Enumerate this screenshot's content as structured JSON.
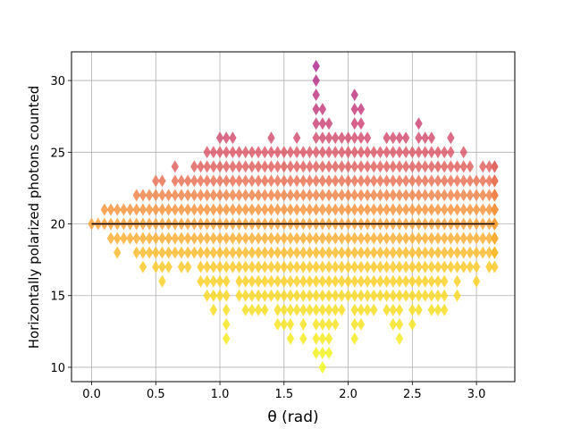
{
  "chart_data": {
    "type": "scatter",
    "title": "",
    "xlabel": "θ (rad)",
    "ylabel": "Horizontally polarized photons counted",
    "xlim": [
      -0.157,
      3.299
    ],
    "ylim": [
      9.0,
      32.0
    ],
    "xticks": [
      0.0,
      0.5,
      1.0,
      1.5,
      2.0,
      2.5,
      3.0
    ],
    "xtick_labels": [
      "0.0",
      "0.5",
      "1.0",
      "1.5",
      "2.0",
      "2.5",
      "3.0"
    ],
    "yticks": [
      10,
      15,
      20,
      25,
      30
    ],
    "ytick_labels": [
      "10",
      "15",
      "20",
      "25",
      "30"
    ],
    "grid": true,
    "marker": "thin_diamond",
    "colormap": "plasma (value-coloured, 10 → yellow, 31 → purple)",
    "color_scale": [
      {
        "value": 10,
        "color": "#f0f921"
      },
      {
        "value": 17,
        "color": "#fdc929"
      },
      {
        "value": 21,
        "color": "#f89540"
      },
      {
        "value": 24,
        "color": "#e16462"
      },
      {
        "value": 27,
        "color": "#cc4778"
      },
      {
        "value": 31,
        "color": "#b12a90"
      }
    ],
    "reference_line": {
      "y": 20,
      "x": [
        0.0,
        3.1416
      ],
      "color": "#000000"
    },
    "x_step": 0.05,
    "min_counts_by_x_index": [
      20,
      20,
      20,
      19,
      18,
      19,
      19,
      18,
      17,
      18,
      17,
      16,
      17,
      18,
      17,
      17,
      18,
      16,
      15,
      14,
      15,
      12,
      17,
      15,
      14,
      14,
      14,
      14,
      15,
      13,
      13,
      12,
      14,
      12,
      14,
      11,
      10,
      11,
      13,
      14,
      15,
      12,
      13,
      14,
      14,
      15,
      14,
      13,
      12,
      15,
      13,
      14,
      15,
      14,
      14,
      14,
      17,
      15,
      17,
      17,
      16,
      18,
      17,
      17,
      18,
      18,
      18,
      19,
      19,
      19,
      19,
      18,
      19,
      19,
      19,
      20,
      19,
      20,
      20,
      20,
      20,
      20,
      19,
      20,
      20,
      20,
      20,
      20,
      20,
      19,
      19,
      19,
      20,
      20,
      20,
      20,
      20,
      20,
      19,
      20,
      20,
      20,
      20,
      20,
      20,
      19,
      20,
      20,
      20,
      20,
      19,
      20,
      19,
      20,
      20,
      20,
      20,
      20,
      19,
      20,
      19,
      20,
      19,
      20,
      20,
      20,
      19,
      19,
      20
    ],
    "max_counts_by_x_index": [
      20,
      20,
      21,
      21,
      21,
      21,
      21,
      22,
      22,
      22,
      23,
      23,
      22,
      24,
      23,
      23,
      24,
      24,
      25,
      25,
      26,
      26,
      26,
      25,
      25,
      25,
      25,
      25,
      26,
      25,
      25,
      25,
      26,
      25,
      25,
      31,
      28,
      27,
      26,
      26,
      26,
      29,
      28,
      26,
      25,
      25,
      26,
      26,
      26,
      26,
      25,
      27,
      26,
      26,
      25,
      25,
      26,
      24,
      25,
      24,
      23,
      24,
      24,
      24,
      24,
      23,
      23,
      23,
      23,
      22,
      22,
      22,
      22,
      22,
      21,
      22,
      21,
      21,
      21,
      21,
      21,
      21,
      21,
      21,
      21,
      21,
      21,
      21,
      21,
      21,
      21,
      21,
      21,
      21,
      21,
      21,
      21,
      21,
      21,
      21,
      21,
      21,
      21,
      21,
      21,
      21,
      21,
      21,
      21,
      21,
      21,
      21,
      21,
      21,
      21,
      21,
      21,
      21,
      21,
      21,
      21,
      21,
      21,
      21,
      21,
      21,
      21,
      21,
      20
    ]
  }
}
